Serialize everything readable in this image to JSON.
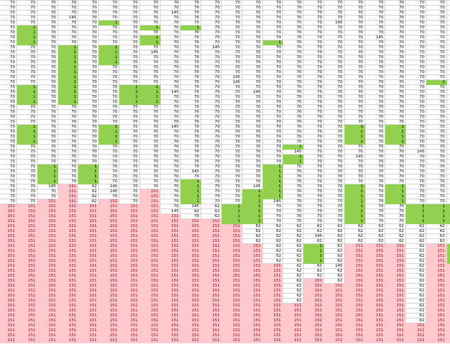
{
  "colors": {
    "white": "#ffffff",
    "green": "#92d050",
    "pink": "#ffc7ce",
    "pink_text": "#9c0006",
    "text": "#000000",
    "gridline": "#d4d4d4"
  },
  "top_partial_row": [
    "70",
    "70",
    "70",
    "70",
    "70",
    "70",
    "70",
    "70",
    "70",
    "70",
    "70",
    "70",
    "70",
    "70",
    "145",
    "70",
    "70",
    "70",
    "145",
    "70",
    "70",
    "70",
    ""
  ],
  "columns": [
    {
      "segments": [
        [
          "70",
          41,
          "white"
        ],
        [
          "151",
          28,
          "pink"
        ]
      ]
    },
    {
      "segments": [
        [
          "70",
          5,
          "white"
        ],
        [
          "1",
          4,
          "green"
        ],
        [
          "70",
          8,
          "white"
        ],
        [
          "1",
          4,
          "green"
        ],
        [
          "70",
          4,
          "white"
        ],
        [
          "1",
          4,
          "green"
        ],
        [
          "70",
          12,
          "white"
        ],
        [
          "151",
          28,
          "pink"
        ]
      ]
    },
    {
      "segments": [
        [
          "70",
          33,
          "white"
        ],
        [
          "1",
          4,
          "green"
        ],
        [
          "145",
          1,
          "white"
        ],
        [
          "70",
          2,
          "white"
        ],
        [
          "151",
          29,
          "pink"
        ]
      ]
    },
    {
      "segments": [
        [
          "70",
          3,
          "white"
        ],
        [
          "145",
          1,
          "white"
        ],
        [
          "70",
          5,
          "white"
        ],
        [
          "1",
          12,
          "green"
        ],
        [
          "70",
          16,
          "white"
        ],
        [
          "151",
          32,
          "pink"
        ]
      ]
    },
    {
      "segments": [
        [
          "70",
          33,
          "white"
        ],
        [
          "1",
          4,
          "green"
        ],
        [
          "62",
          4,
          "white"
        ],
        [
          "151",
          28,
          "pink"
        ]
      ]
    },
    {
      "segments": [
        [
          "70",
          4,
          "white"
        ],
        [
          "1",
          1,
          "green"
        ],
        [
          "70",
          4,
          "white"
        ],
        [
          "1",
          4,
          "green"
        ],
        [
          "70",
          12,
          "white"
        ],
        [
          "1",
          4,
          "green"
        ],
        [
          "70",
          8,
          "white"
        ],
        [
          "145",
          2,
          "white"
        ],
        [
          "70",
          1,
          "white"
        ],
        [
          "151",
          29,
          "pink"
        ]
      ]
    },
    {
      "segments": [
        [
          "70",
          17,
          "white"
        ],
        [
          "1",
          4,
          "green"
        ],
        [
          "70",
          20,
          "white"
        ],
        [
          "151",
          28,
          "pink"
        ]
      ]
    },
    {
      "segments": [
        [
          "70",
          5,
          "white"
        ],
        [
          "1",
          1,
          "green"
        ],
        [
          "70",
          1,
          "white"
        ],
        [
          "1",
          2,
          "green"
        ],
        [
          "70",
          1,
          "white"
        ],
        [
          "145",
          1,
          "white"
        ],
        [
          "70",
          6,
          "white"
        ],
        [
          "1",
          4,
          "green"
        ],
        [
          "70",
          17,
          "white"
        ],
        [
          "151",
          31,
          "pink"
        ]
      ]
    },
    {
      "segments": [
        [
          "70",
          2,
          "white"
        ],
        [
          "145",
          1,
          "white"
        ],
        [
          "70",
          15,
          "white"
        ],
        [
          "145",
          1,
          "white"
        ],
        [
          "70",
          6,
          "white"
        ],
        [
          "145",
          1,
          "white"
        ],
        [
          "70",
          16,
          "white"
        ],
        [
          "145",
          1,
          "white"
        ],
        [
          "151",
          26,
          "pink"
        ]
      ]
    },
    {
      "segments": [
        [
          "70",
          5,
          "white"
        ],
        [
          "1",
          1,
          "green"
        ],
        [
          "70",
          28,
          "white"
        ],
        [
          "145",
          1,
          "white"
        ],
        [
          "70",
          1,
          "white"
        ],
        [
          "1",
          5,
          "green"
        ],
        [
          "145",
          1,
          "white"
        ],
        [
          "62",
          1,
          "white"
        ],
        [
          "70",
          1,
          "white"
        ],
        [
          "151",
          25,
          "pink"
        ]
      ]
    },
    {
      "segments": [
        [
          "70",
          9,
          "white"
        ],
        [
          "145",
          1,
          "white"
        ],
        [
          "70",
          31,
          "white"
        ],
        [
          "62",
          3,
          "white"
        ],
        [
          "151",
          25,
          "pink"
        ]
      ]
    },
    {
      "segments": [
        [
          "70",
          15,
          "white"
        ],
        [
          "145",
          2,
          "white"
        ],
        [
          "70",
          24,
          "white"
        ],
        [
          "1",
          4,
          "green"
        ],
        [
          "151",
          24,
          "pink"
        ]
      ]
    },
    {
      "segments": [
        [
          "70",
          18,
          "white"
        ],
        [
          "145",
          1,
          "white"
        ],
        [
          "70",
          18,
          "white"
        ],
        [
          "145",
          1,
          "white"
        ],
        [
          "1",
          7,
          "green"
        ],
        [
          "62",
          4,
          "white"
        ],
        [
          "151",
          20,
          "pink"
        ]
      ]
    },
    {
      "segments": [
        [
          "70",
          8,
          "white"
        ],
        [
          "1",
          1,
          "green"
        ],
        [
          "70",
          24,
          "white"
        ],
        [
          "1",
          7,
          "green"
        ],
        [
          "145",
          1,
          "white"
        ],
        [
          "70",
          4,
          "white"
        ],
        [
          "62",
          8,
          "white"
        ],
        [
          "151",
          16,
          "pink"
        ]
      ]
    },
    {
      "segments": [
        [
          "70",
          29,
          "white"
        ],
        [
          "1",
          1,
          "green"
        ],
        [
          "145",
          1,
          "white"
        ],
        [
          "1",
          2,
          "green"
        ],
        [
          "70",
          12,
          "white"
        ],
        [
          "62",
          16,
          "white"
        ],
        [
          "151",
          8,
          "pink"
        ]
      ]
    },
    {
      "segments": [
        [
          "70",
          45,
          "white"
        ],
        [
          "62",
          2,
          "white"
        ],
        [
          "145",
          1,
          "white"
        ],
        [
          "62",
          1,
          "white"
        ],
        [
          "1",
          4,
          "green"
        ],
        [
          "62",
          3,
          "white"
        ],
        [
          "151",
          13,
          "pink"
        ]
      ]
    },
    {
      "segments": [
        [
          "70",
          4,
          "white"
        ],
        [
          "145",
          1,
          "white"
        ],
        [
          "70",
          40,
          "white"
        ],
        [
          "62",
          8,
          "white"
        ],
        [
          "145",
          1,
          "white"
        ],
        [
          "62",
          3,
          "white"
        ],
        [
          "151",
          12,
          "pink"
        ]
      ]
    },
    {
      "segments": [
        [
          "70",
          25,
          "white"
        ],
        [
          "1",
          4,
          "green"
        ],
        [
          "70",
          2,
          "white"
        ],
        [
          "145",
          1,
          "white"
        ],
        [
          "70",
          5,
          "white"
        ],
        [
          "1",
          8,
          "green"
        ],
        [
          "62",
          4,
          "white"
        ],
        [
          "151",
          20,
          "pink"
        ]
      ]
    },
    {
      "segments": [
        [
          "70",
          7,
          "white"
        ],
        [
          "145",
          1,
          "white"
        ],
        [
          "70",
          37,
          "white"
        ],
        [
          "62",
          4,
          "white"
        ],
        [
          "151",
          20,
          "pink"
        ]
      ]
    },
    {
      "segments": [
        [
          "70",
          25,
          "white"
        ],
        [
          "1",
          4,
          "green"
        ],
        [
          "70",
          8,
          "white"
        ],
        [
          "1",
          4,
          "green"
        ],
        [
          "70",
          4,
          "white"
        ],
        [
          "62",
          4,
          "white"
        ],
        [
          "151",
          20,
          "pink"
        ]
      ]
    },
    {
      "segments": [
        [
          "70",
          30,
          "white"
        ],
        [
          "145",
          1,
          "white"
        ],
        [
          "70",
          10,
          "white"
        ],
        [
          "1",
          4,
          "green"
        ],
        [
          "62",
          20,
          "white"
        ],
        [
          "151",
          4,
          "pink"
        ]
      ]
    },
    {
      "segments": [
        [
          "70",
          16,
          "white"
        ],
        [
          "1",
          1,
          "green"
        ],
        [
          "70",
          24,
          "white"
        ],
        [
          "1",
          4,
          "green"
        ],
        [
          "62",
          4,
          "white"
        ],
        [
          "151",
          20,
          "pink"
        ]
      ]
    },
    {
      "segments": [
        [
          "",
          41,
          "white"
        ],
        [
          "",
          4,
          "green"
        ],
        [
          "",
          4,
          "white"
        ],
        [
          "",
          4,
          "green"
        ],
        [
          "",
          16,
          "pink"
        ]
      ]
    }
  ]
}
